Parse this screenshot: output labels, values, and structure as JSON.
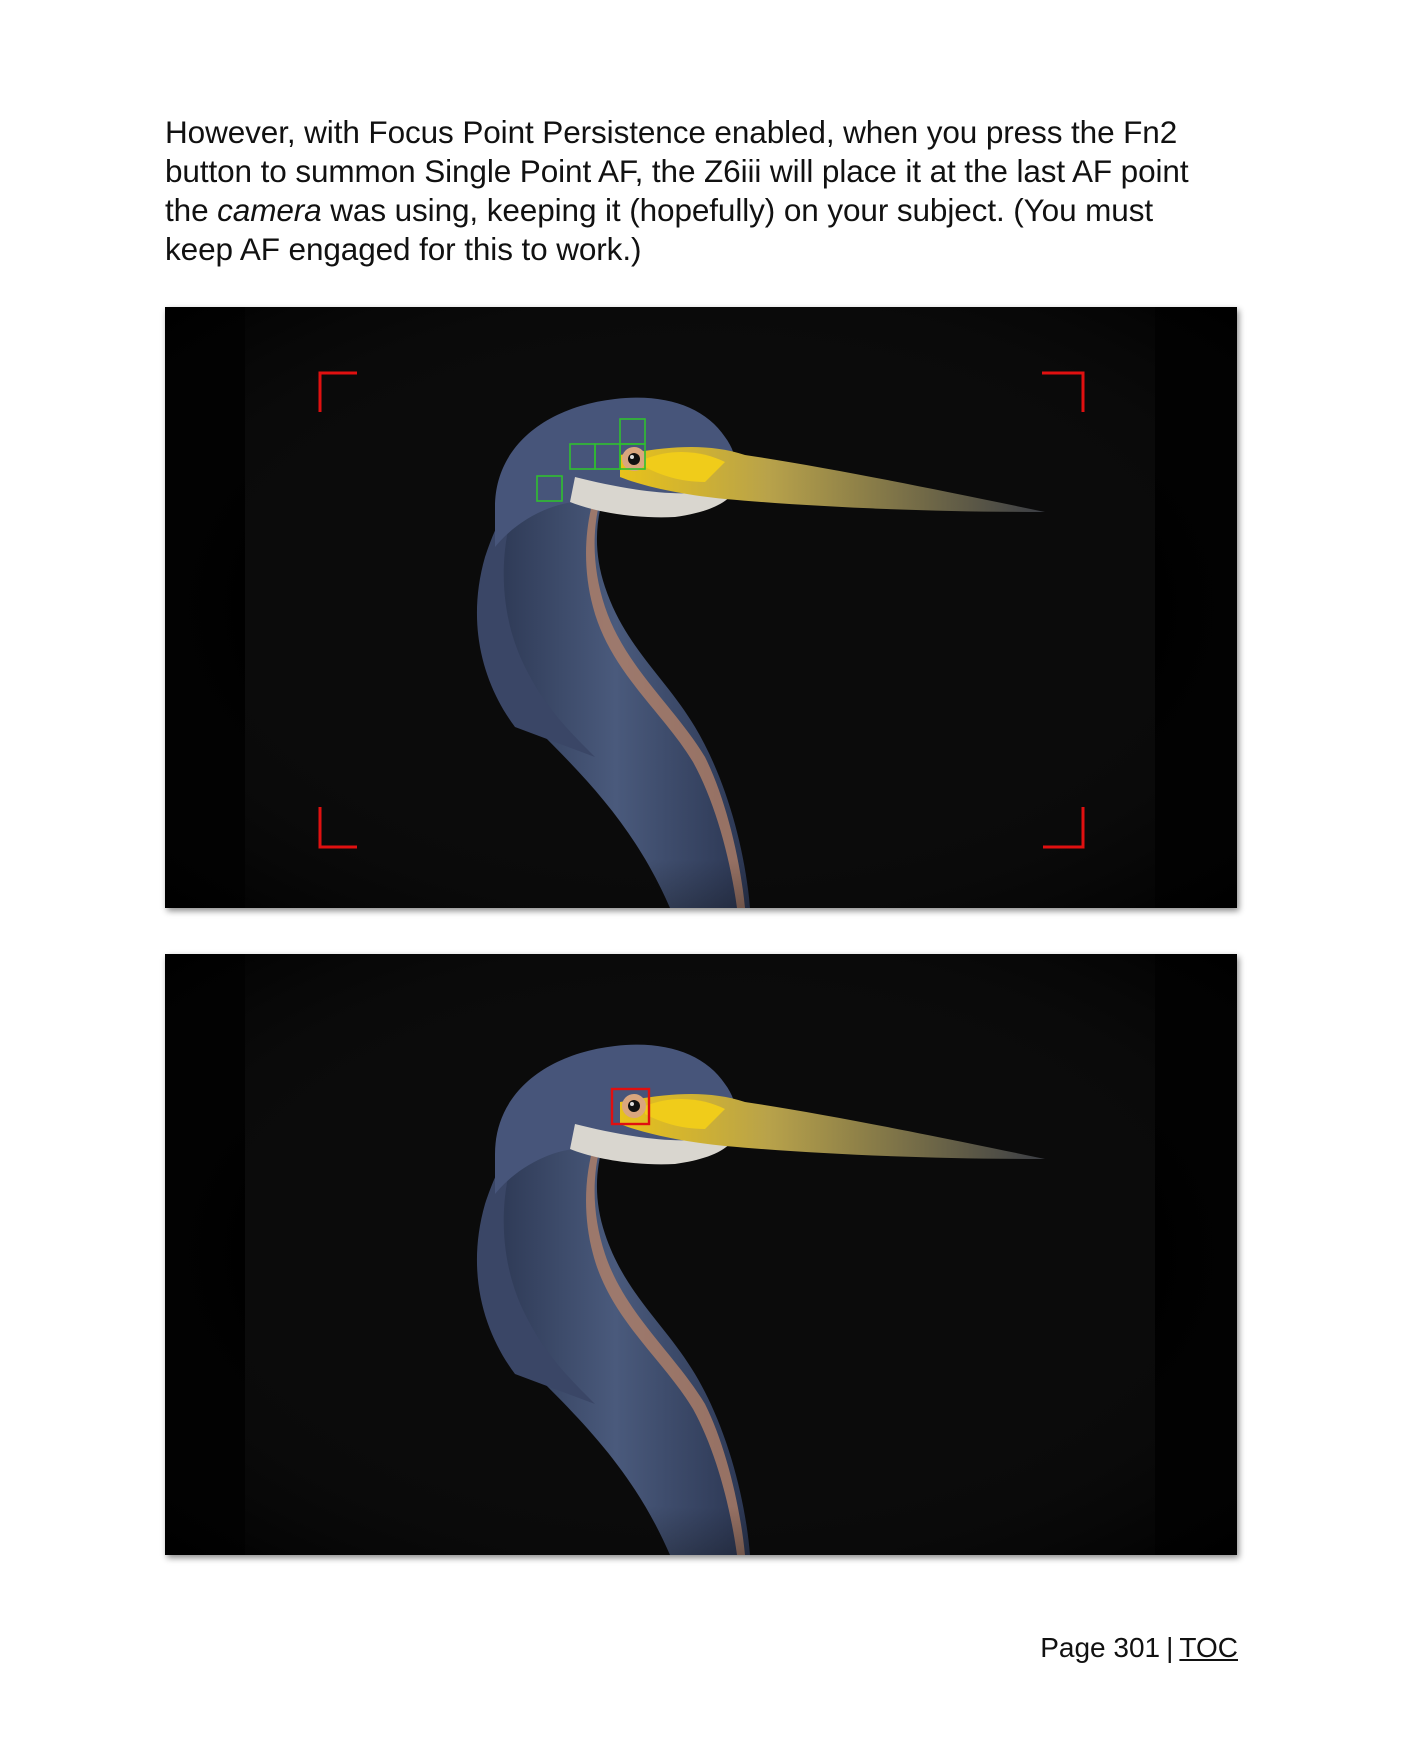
{
  "body": {
    "line1": "However, with Focus Point Persistence enabled, when you press the Fn2",
    "line2": "button to summon Single Point AF, the Z6iii will place it at the last AF point",
    "line3_before": "the ",
    "line3_italic": "camera",
    "line3_after": " was using, keeping it (hopefully) on your subject. (You must",
    "line4": "keep AF engaged for this to work.)"
  },
  "figures": [
    {
      "subject": "tricolored-heron-head-profile",
      "overlay": "subject-detection-area-with-green-af-points",
      "af_point_color": "#2fbf2f",
      "frame_color": "#e01010"
    },
    {
      "subject": "tricolored-heron-head-profile",
      "overlay": "single-point-af-on-eye",
      "af_point_color": "#e01010"
    }
  ],
  "footer": {
    "page_label": "Page 301",
    "separator": "|",
    "toc_label": "TOC"
  },
  "colors": {
    "background": "#ffffff",
    "text": "#111111",
    "photo_background": "#070707"
  }
}
